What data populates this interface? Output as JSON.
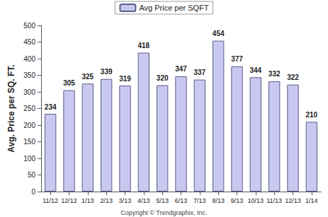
{
  "chart_data": {
    "type": "bar",
    "y_label": "Avg. Price per SQ. FT.",
    "annotation": "Copyright © Trendgraphix, Inc.",
    "categories": [
      "11/12",
      "12/12",
      "1/13",
      "2/13",
      "3/13",
      "4/13",
      "5/13",
      "6/13",
      "7/13",
      "8/13",
      "9/13",
      "10/13",
      "11/13",
      "12/13",
      "1/14"
    ],
    "series": [
      {
        "name": "Avg Price per SQFT",
        "color": "#c8c8f0",
        "values": [
          234,
          305,
          325,
          339,
          319,
          418,
          320,
          347,
          337,
          454,
          377,
          344,
          332,
          322,
          210
        ]
      }
    ],
    "ylim": [
      0,
      500
    ],
    "yticks": [
      0,
      50,
      100,
      150,
      200,
      250,
      300,
      350,
      400,
      450,
      500
    ],
    "grid": false,
    "legend": "top",
    "data_labels": true
  }
}
